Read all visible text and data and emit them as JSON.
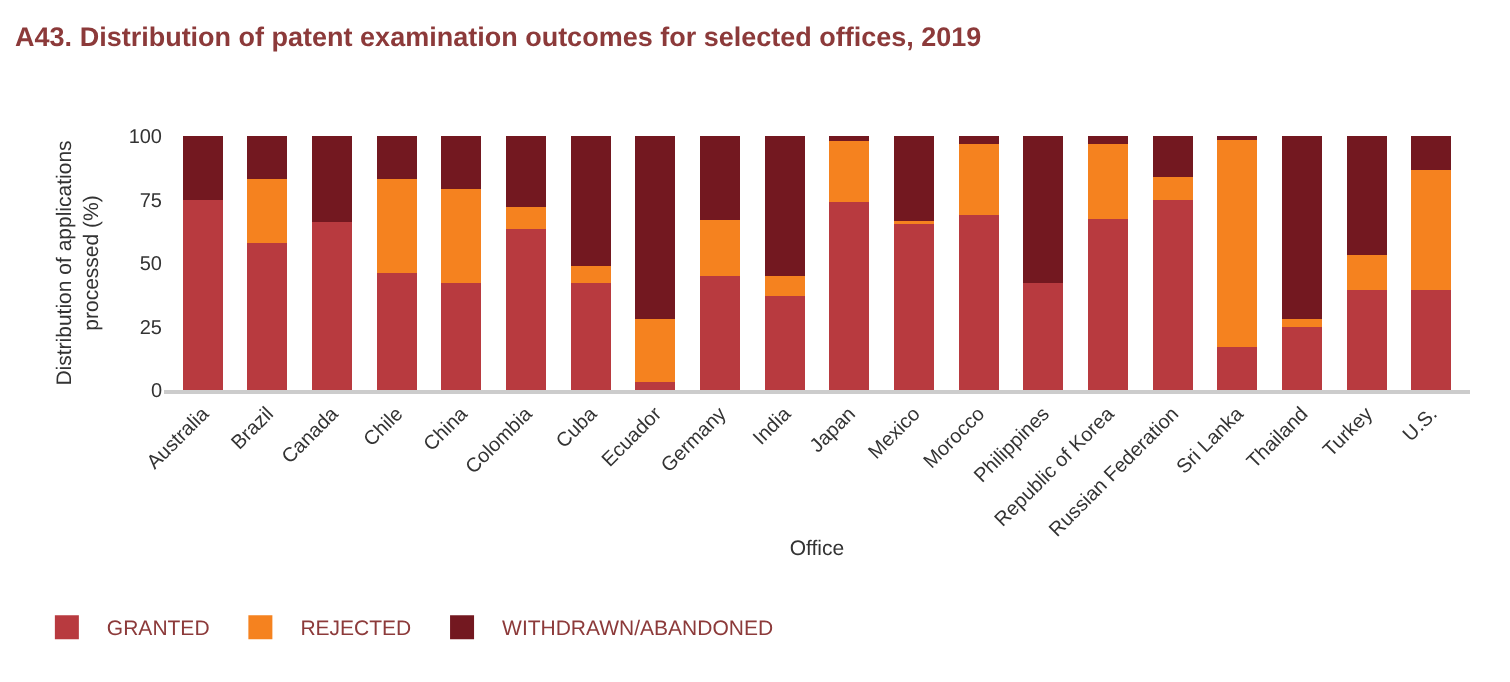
{
  "chart_data": {
    "type": "bar",
    "stacked": true,
    "title": "A43. Distribution of patent examination outcomes for selected offices, 2019",
    "xlabel": "Office",
    "ylabel": "Distribution of applications processed (%)",
    "categories": [
      "Australia",
      "Brazil",
      "Canada",
      "Chile",
      "China",
      "Colombia",
      "Cuba",
      "Ecuador",
      "Germany",
      "India",
      "Japan",
      "Mexico",
      "Morocco",
      "Philippines",
      "Republic of Korea",
      "Russian Federation",
      "Sri Lanka",
      "Thailand",
      "Turkey",
      "U.S."
    ],
    "series": [
      {
        "name": "GRANTED",
        "color": "#b83a3f",
        "values": [
          75,
          58,
          66,
          46,
          42,
          63.5,
          42,
          3,
          45,
          37,
          74,
          65.5,
          69,
          42,
          67.5,
          75,
          17,
          25,
          39.5,
          39.5
        ]
      },
      {
        "name": "REJECTED",
        "color": "#f5821f",
        "values": [
          0,
          25,
          0,
          37,
          37,
          8.5,
          7,
          25,
          22,
          8,
          24,
          1,
          28,
          0,
          29.5,
          9,
          81.5,
          3,
          13.5,
          47
        ]
      },
      {
        "name": "WITHDRAWN/ABANDONED",
        "color": "#731820",
        "values": [
          25,
          17,
          34,
          17,
          21,
          28,
          51,
          72,
          33,
          55,
          2,
          33.5,
          3,
          58,
          3,
          16,
          1.5,
          72,
          47,
          13.5
        ]
      }
    ],
    "ylim": [
      0,
      100
    ],
    "yticks": [
      0,
      25,
      50,
      75,
      100
    ],
    "legend": "bottom left"
  }
}
